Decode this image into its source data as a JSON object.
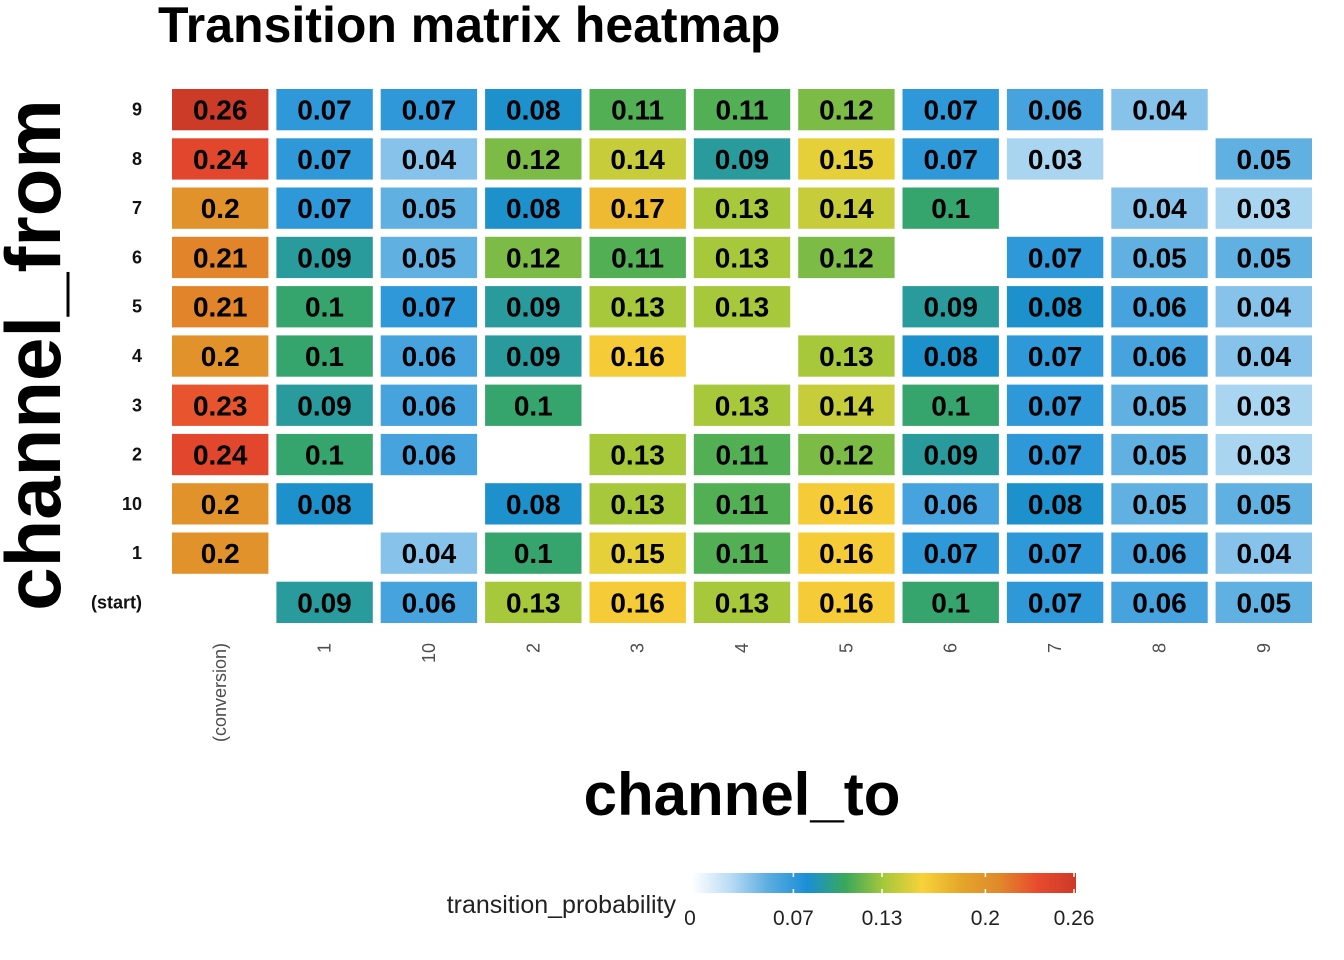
{
  "chart_data": {
    "type": "heatmap",
    "title": "Transition matrix heatmap",
    "xlabel": "channel_to",
    "ylabel": "channel_from",
    "x_categories": [
      "(conversion)",
      "1",
      "10",
      "2",
      "3",
      "4",
      "5",
      "6",
      "7",
      "8",
      "9"
    ],
    "y_categories": [
      "(start)",
      "1",
      "10",
      "2",
      "3",
      "4",
      "5",
      "6",
      "7",
      "8",
      "9"
    ],
    "values": [
      [
        null,
        0.09,
        0.06,
        0.13,
        0.16,
        0.13,
        0.16,
        0.1,
        0.07,
        0.06,
        0.05
      ],
      [
        0.2,
        null,
        0.04,
        0.1,
        0.15,
        0.11,
        0.16,
        0.07,
        0.07,
        0.06,
        0.04
      ],
      [
        0.2,
        0.08,
        null,
        0.08,
        0.13,
        0.11,
        0.16,
        0.06,
        0.08,
        0.05,
        0.05
      ],
      [
        0.24,
        0.1,
        0.06,
        null,
        0.13,
        0.11,
        0.12,
        0.09,
        0.07,
        0.05,
        0.03
      ],
      [
        0.23,
        0.09,
        0.06,
        0.1,
        null,
        0.13,
        0.14,
        0.1,
        0.07,
        0.05,
        0.03
      ],
      [
        0.2,
        0.1,
        0.06,
        0.09,
        0.16,
        null,
        0.13,
        0.08,
        0.07,
        0.06,
        0.04
      ],
      [
        0.21,
        0.1,
        0.07,
        0.09,
        0.13,
        0.13,
        null,
        0.09,
        0.08,
        0.06,
        0.04
      ],
      [
        0.21,
        0.09,
        0.05,
        0.12,
        0.11,
        0.13,
        0.12,
        null,
        0.07,
        0.05,
        0.05
      ],
      [
        0.2,
        0.07,
        0.05,
        0.08,
        0.17,
        0.13,
        0.14,
        0.1,
        null,
        0.04,
        0.03
      ],
      [
        0.24,
        0.07,
        0.04,
        0.12,
        0.14,
        0.09,
        0.15,
        0.07,
        0.03,
        null,
        0.05
      ],
      [
        0.26,
        0.07,
        0.07,
        0.08,
        0.11,
        0.11,
        0.12,
        0.07,
        0.06,
        0.04,
        null
      ]
    ],
    "color_scale": {
      "min": 0,
      "max": 0.26,
      "stops": [
        "#ffffff",
        "#b9dcf4",
        "#5aace0",
        "#1a8fd6",
        "#3aa85a",
        "#a6c83a",
        "#f8d23a",
        "#e5a62a",
        "#e0892a",
        "#e84a2e",
        "#cc3a28"
      ]
    },
    "legend": {
      "title": "transition_probability",
      "ticks": [
        "0",
        "0.07",
        "0.13",
        "0.2",
        "0.26"
      ],
      "placement": "bottom"
    },
    "grid": false
  }
}
